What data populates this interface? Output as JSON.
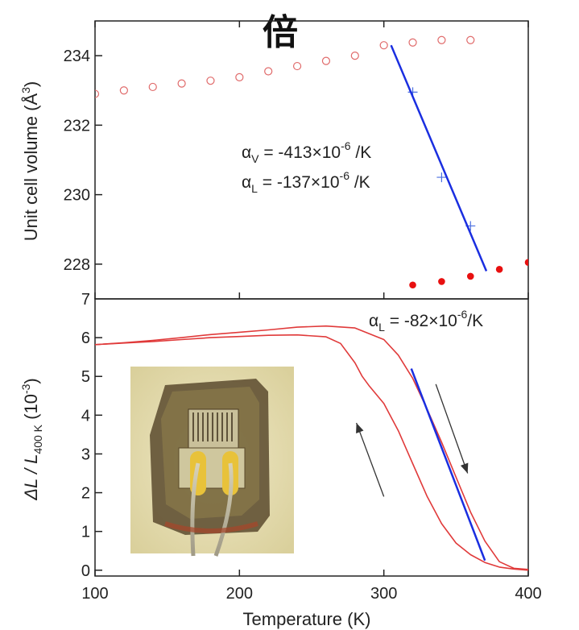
{
  "heading_glyph": "倍",
  "chart_data": [
    {
      "type": "scatter",
      "panel": "top",
      "xlim": [
        100,
        400
      ],
      "ylim": [
        227,
        235
      ],
      "ylabel": "Unit cell volume (Å3)",
      "ylabel_parts": {
        "main": "Unit cell volume (Å",
        "sup": "3",
        "end": ")"
      },
      "y_ticks": [
        228,
        230,
        232,
        234
      ],
      "colors": {
        "open": "#e06a6a",
        "cross": "#4a6ee0",
        "filled": "#e81010",
        "fit": "#1a2ee0"
      },
      "series": [
        {
          "marker": "open-circle",
          "x": [
            100,
            120,
            140,
            160,
            180,
            200,
            220,
            240,
            260,
            280,
            300,
            320,
            340,
            360
          ],
          "y": [
            232.9,
            233.0,
            233.1,
            233.2,
            233.28,
            233.38,
            233.55,
            233.7,
            233.85,
            234.0,
            234.3,
            234.38,
            234.45,
            234.45
          ]
        },
        {
          "marker": "cross",
          "x": [
            320,
            340,
            360
          ],
          "y": [
            232.95,
            230.5,
            229.1
          ]
        },
        {
          "marker": "filled-circle",
          "x": [
            320,
            340,
            360,
            380,
            400
          ],
          "y": [
            227.4,
            227.5,
            227.65,
            227.85,
            228.05
          ]
        }
      ],
      "fit_line": {
        "x": [
          305,
          371
        ],
        "y": [
          234.3,
          227.8
        ]
      },
      "annotations": [
        {
          "base": "α",
          "sub": "V",
          "text": " = -413×10",
          "sup": "-6",
          "end": " /K"
        },
        {
          "base": "α",
          "sub": "L",
          "text": " = -137×10",
          "sup": "-6",
          "end": " /K"
        }
      ]
    },
    {
      "type": "line",
      "panel": "bottom",
      "xlim": [
        100,
        400
      ],
      "ylim": [
        -0.15,
        7
      ],
      "xlabel": "Temperature (K)",
      "ylabel": "ΔL / L400 K (10-3)",
      "ylabel_parts": {
        "a": "ΔL / L",
        "sub": "400 K",
        "b": " (10",
        "sup": "-3",
        "c": ")"
      },
      "x_ticks": [
        100,
        200,
        300,
        400
      ],
      "y_ticks": [
        0,
        1,
        2,
        3,
        4,
        5,
        6,
        7
      ],
      "colors": {
        "curve": "#e03a3a",
        "fit": "#1a2ee0",
        "arrow": "#333333"
      },
      "series": [
        {
          "direction": "heating",
          "x": [
            100,
            120,
            140,
            160,
            180,
            200,
            220,
            240,
            260,
            280,
            300,
            310,
            320,
            330,
            340,
            350,
            360,
            370,
            380,
            390,
            400
          ],
          "y": [
            5.82,
            5.87,
            5.93,
            6.0,
            6.08,
            6.14,
            6.2,
            6.27,
            6.3,
            6.25,
            5.95,
            5.55,
            4.95,
            4.15,
            3.3,
            2.4,
            1.5,
            0.75,
            0.22,
            0.05,
            0.02
          ]
        },
        {
          "direction": "cooling",
          "x": [
            100,
            120,
            140,
            160,
            180,
            200,
            220,
            240,
            260,
            270,
            280,
            285,
            290,
            300,
            310,
            320,
            330,
            340,
            350,
            360,
            370,
            380,
            390,
            400
          ],
          "y": [
            5.82,
            5.86,
            5.9,
            5.95,
            6.0,
            6.03,
            6.06,
            6.07,
            6.02,
            5.85,
            5.35,
            5.0,
            4.75,
            4.3,
            3.6,
            2.75,
            1.9,
            1.2,
            0.7,
            0.4,
            0.2,
            0.08,
            0.03,
            0.0
          ]
        }
      ],
      "fit_line": {
        "x": [
          319,
          370
        ],
        "y": [
          5.2,
          0.25
        ]
      },
      "annotation": {
        "base": "α",
        "sub": "L",
        "text": " = -82×10",
        "sup": "-6",
        "end": "/K"
      },
      "arrows": [
        {
          "direction": "up",
          "from": [
            300,
            1.9
          ],
          "to": [
            281,
            3.8
          ]
        },
        {
          "direction": "down",
          "from": [
            336,
            4.8
          ],
          "to": [
            358,
            2.5
          ]
        }
      ],
      "inset_photo": {
        "subject": "strain-gauge sample photo"
      }
    }
  ]
}
